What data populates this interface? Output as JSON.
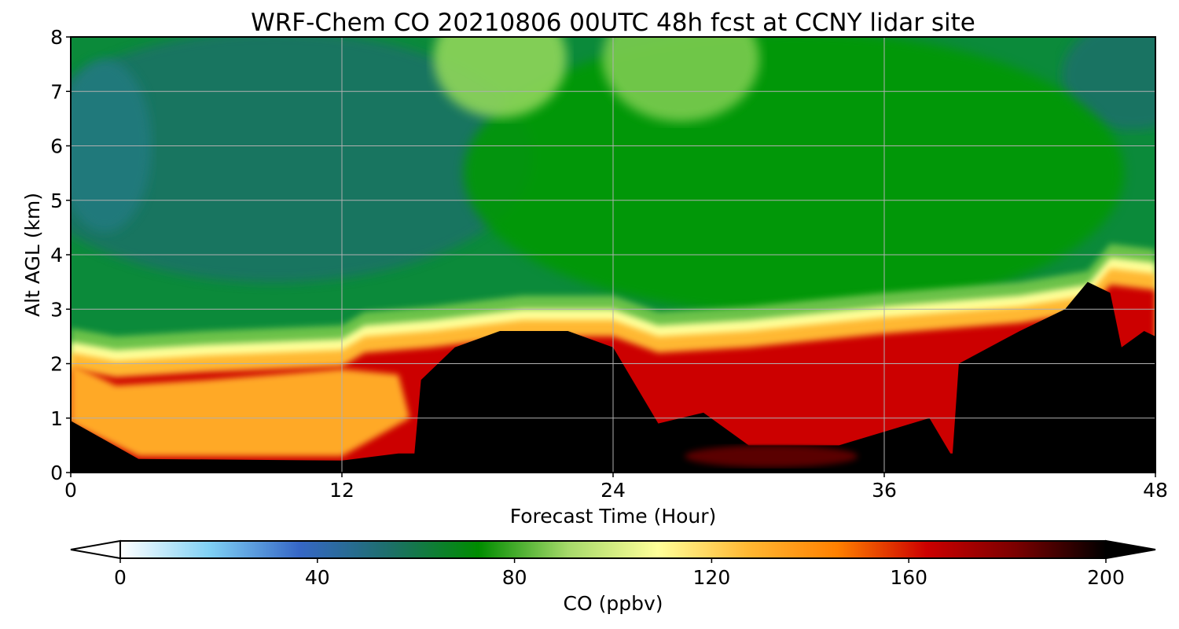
{
  "chart_data": {
    "type": "heatmap",
    "title": "WRF-Chem CO  20210806 00UTC 48h fcst at CCNY lidar site",
    "xlabel": "Forecast Time (Hour)",
    "ylabel": "Alt AGL (km)",
    "xlim": [
      0,
      48
    ],
    "ylim": [
      0,
      8
    ],
    "x_ticks": [
      "0",
      "12",
      "24",
      "36",
      "48"
    ],
    "y_ticks": [
      "0",
      "1",
      "2",
      "3",
      "4",
      "5",
      "6",
      "7",
      "8"
    ],
    "grid": true,
    "colorbar": {
      "label": "CO  (ppbv)",
      "range": [
        0,
        200
      ],
      "ticks": [
        "0",
        "40",
        "80",
        "120",
        "160",
        "200"
      ],
      "extend": "both",
      "colors": [
        "#ffffff",
        "#7fd0f4",
        "#3667c6",
        "#1d6f6a",
        "#008c00",
        "#a6d96a",
        "#ffff99",
        "#ffb833",
        "#ff8000",
        "#cc0000",
        "#7a0000",
        "#000000"
      ]
    },
    "field_summary": {
      "upper_layer": "CO mostly 60–85 ppbv above ~3 km; highest (~90) near 7–8 km at hours 18–28",
      "boundary_layer_top_km": [
        {
          "x": 0,
          "y": 2.35
        },
        {
          "x": 2,
          "y": 2.2
        },
        {
          "x": 6,
          "y": 2.3
        },
        {
          "x": 12,
          "y": 2.4
        },
        {
          "x": 13,
          "y": 2.65
        },
        {
          "x": 16,
          "y": 2.75
        },
        {
          "x": 20,
          "y": 2.95
        },
        {
          "x": 24,
          "y": 2.95
        },
        {
          "x": 26,
          "y": 2.65
        },
        {
          "x": 30,
          "y": 2.75
        },
        {
          "x": 36,
          "y": 3.0
        },
        {
          "x": 42,
          "y": 3.2
        },
        {
          "x": 45,
          "y": 3.4
        },
        {
          "x": 46,
          "y": 3.9
        },
        {
          "x": 48,
          "y": 3.8
        }
      ],
      "high_co_core_over_200_ppbv": [
        {
          "x": 15,
          "x2": 24,
          "y_top": 2.6
        },
        {
          "x": 39,
          "x2": 48,
          "y_top": 3.5
        }
      ]
    }
  }
}
